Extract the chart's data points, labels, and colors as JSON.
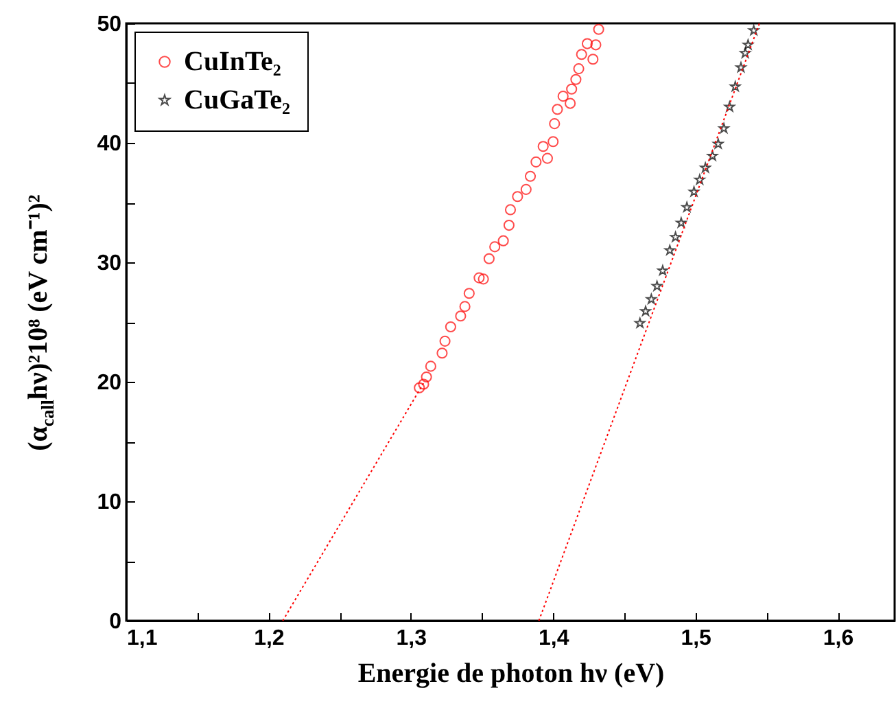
{
  "chart_data": {
    "type": "scatter",
    "xlabel": "Energie de photon hν  (eV)",
    "ylabel": "(α$_{call}$hν)²10⁸ (eV cm⁻¹)²",
    "xlim": [
      1.1,
      1.64
    ],
    "ylim": [
      0,
      50
    ],
    "xticks": [
      {
        "value": 1.1,
        "label": "1,1"
      },
      {
        "value": 1.15,
        "label": null
      },
      {
        "value": 1.2,
        "label": "1,2"
      },
      {
        "value": 1.25,
        "label": null
      },
      {
        "value": 1.3,
        "label": "1,3"
      },
      {
        "value": 1.35,
        "label": null
      },
      {
        "value": 1.4,
        "label": "1,4"
      },
      {
        "value": 1.45,
        "label": null
      },
      {
        "value": 1.5,
        "label": "1,5"
      },
      {
        "value": 1.55,
        "label": null
      },
      {
        "value": 1.6,
        "label": "1,6"
      }
    ],
    "yticks": [
      0,
      {
        "value": 5,
        "label": null
      },
      10,
      {
        "value": 15,
        "label": null
      },
      20,
      {
        "value": 25,
        "label": null
      },
      30,
      {
        "value": 35,
        "label": null
      },
      40,
      {
        "value": 45,
        "label": null
      },
      50
    ],
    "legend": "top left",
    "grid": false,
    "series": [
      {
        "name": "CuInTe₂",
        "marker": "circle",
        "color": "#ff0000",
        "x": [
          1.306,
          1.309,
          1.311,
          1.314,
          1.322,
          1.324,
          1.328,
          1.335,
          1.338,
          1.341,
          1.348,
          1.351,
          1.355,
          1.359,
          1.365,
          1.369,
          1.37,
          1.375,
          1.381,
          1.384,
          1.388,
          1.393,
          1.396,
          1.4,
          1.401,
          1.403,
          1.407,
          1.412,
          1.413,
          1.416,
          1.418,
          1.42,
          1.424,
          1.428,
          1.43,
          1.432
        ],
        "values": [
          19.5,
          19.8,
          20.4,
          21.3,
          22.4,
          23.4,
          24.6,
          25.5,
          26.3,
          27.4,
          28.7,
          28.6,
          30.3,
          31.3,
          31.8,
          33.1,
          34.4,
          35.5,
          36.1,
          37.2,
          38.4,
          39.7,
          38.7,
          40.1,
          41.6,
          42.8,
          43.9,
          43.3,
          44.5,
          45.3,
          46.2,
          47.4,
          48.3,
          47.0,
          48.2,
          49.5
        ]
      },
      {
        "name": "CuGaTe₂",
        "marker": "star",
        "color": "#000000",
        "x": [
          1.461,
          1.465,
          1.469,
          1.473,
          1.477,
          1.482,
          1.486,
          1.49,
          1.494,
          1.499,
          1.503,
          1.507,
          1.512,
          1.516,
          1.52,
          1.524,
          1.528,
          1.532,
          1.535,
          1.537,
          1.541
        ],
        "values": [
          24.9,
          25.9,
          26.9,
          28.0,
          29.3,
          31.0,
          32.1,
          33.3,
          34.6,
          35.9,
          36.9,
          37.9,
          38.9,
          39.9,
          41.2,
          43.0,
          44.7,
          46.3,
          47.5,
          48.2,
          49.4
        ]
      },
      {
        "type": "line",
        "line_style": "dotted",
        "marker": "none",
        "color": "#ff0000",
        "x": [
          1.21,
          1.31
        ],
        "values": [
          0,
          20.1
        ]
      },
      {
        "type": "line",
        "line_style": "dotted",
        "marker": "none",
        "color": "#ff0000",
        "x": [
          1.39,
          1.545
        ],
        "values": [
          0,
          50
        ]
      }
    ]
  }
}
